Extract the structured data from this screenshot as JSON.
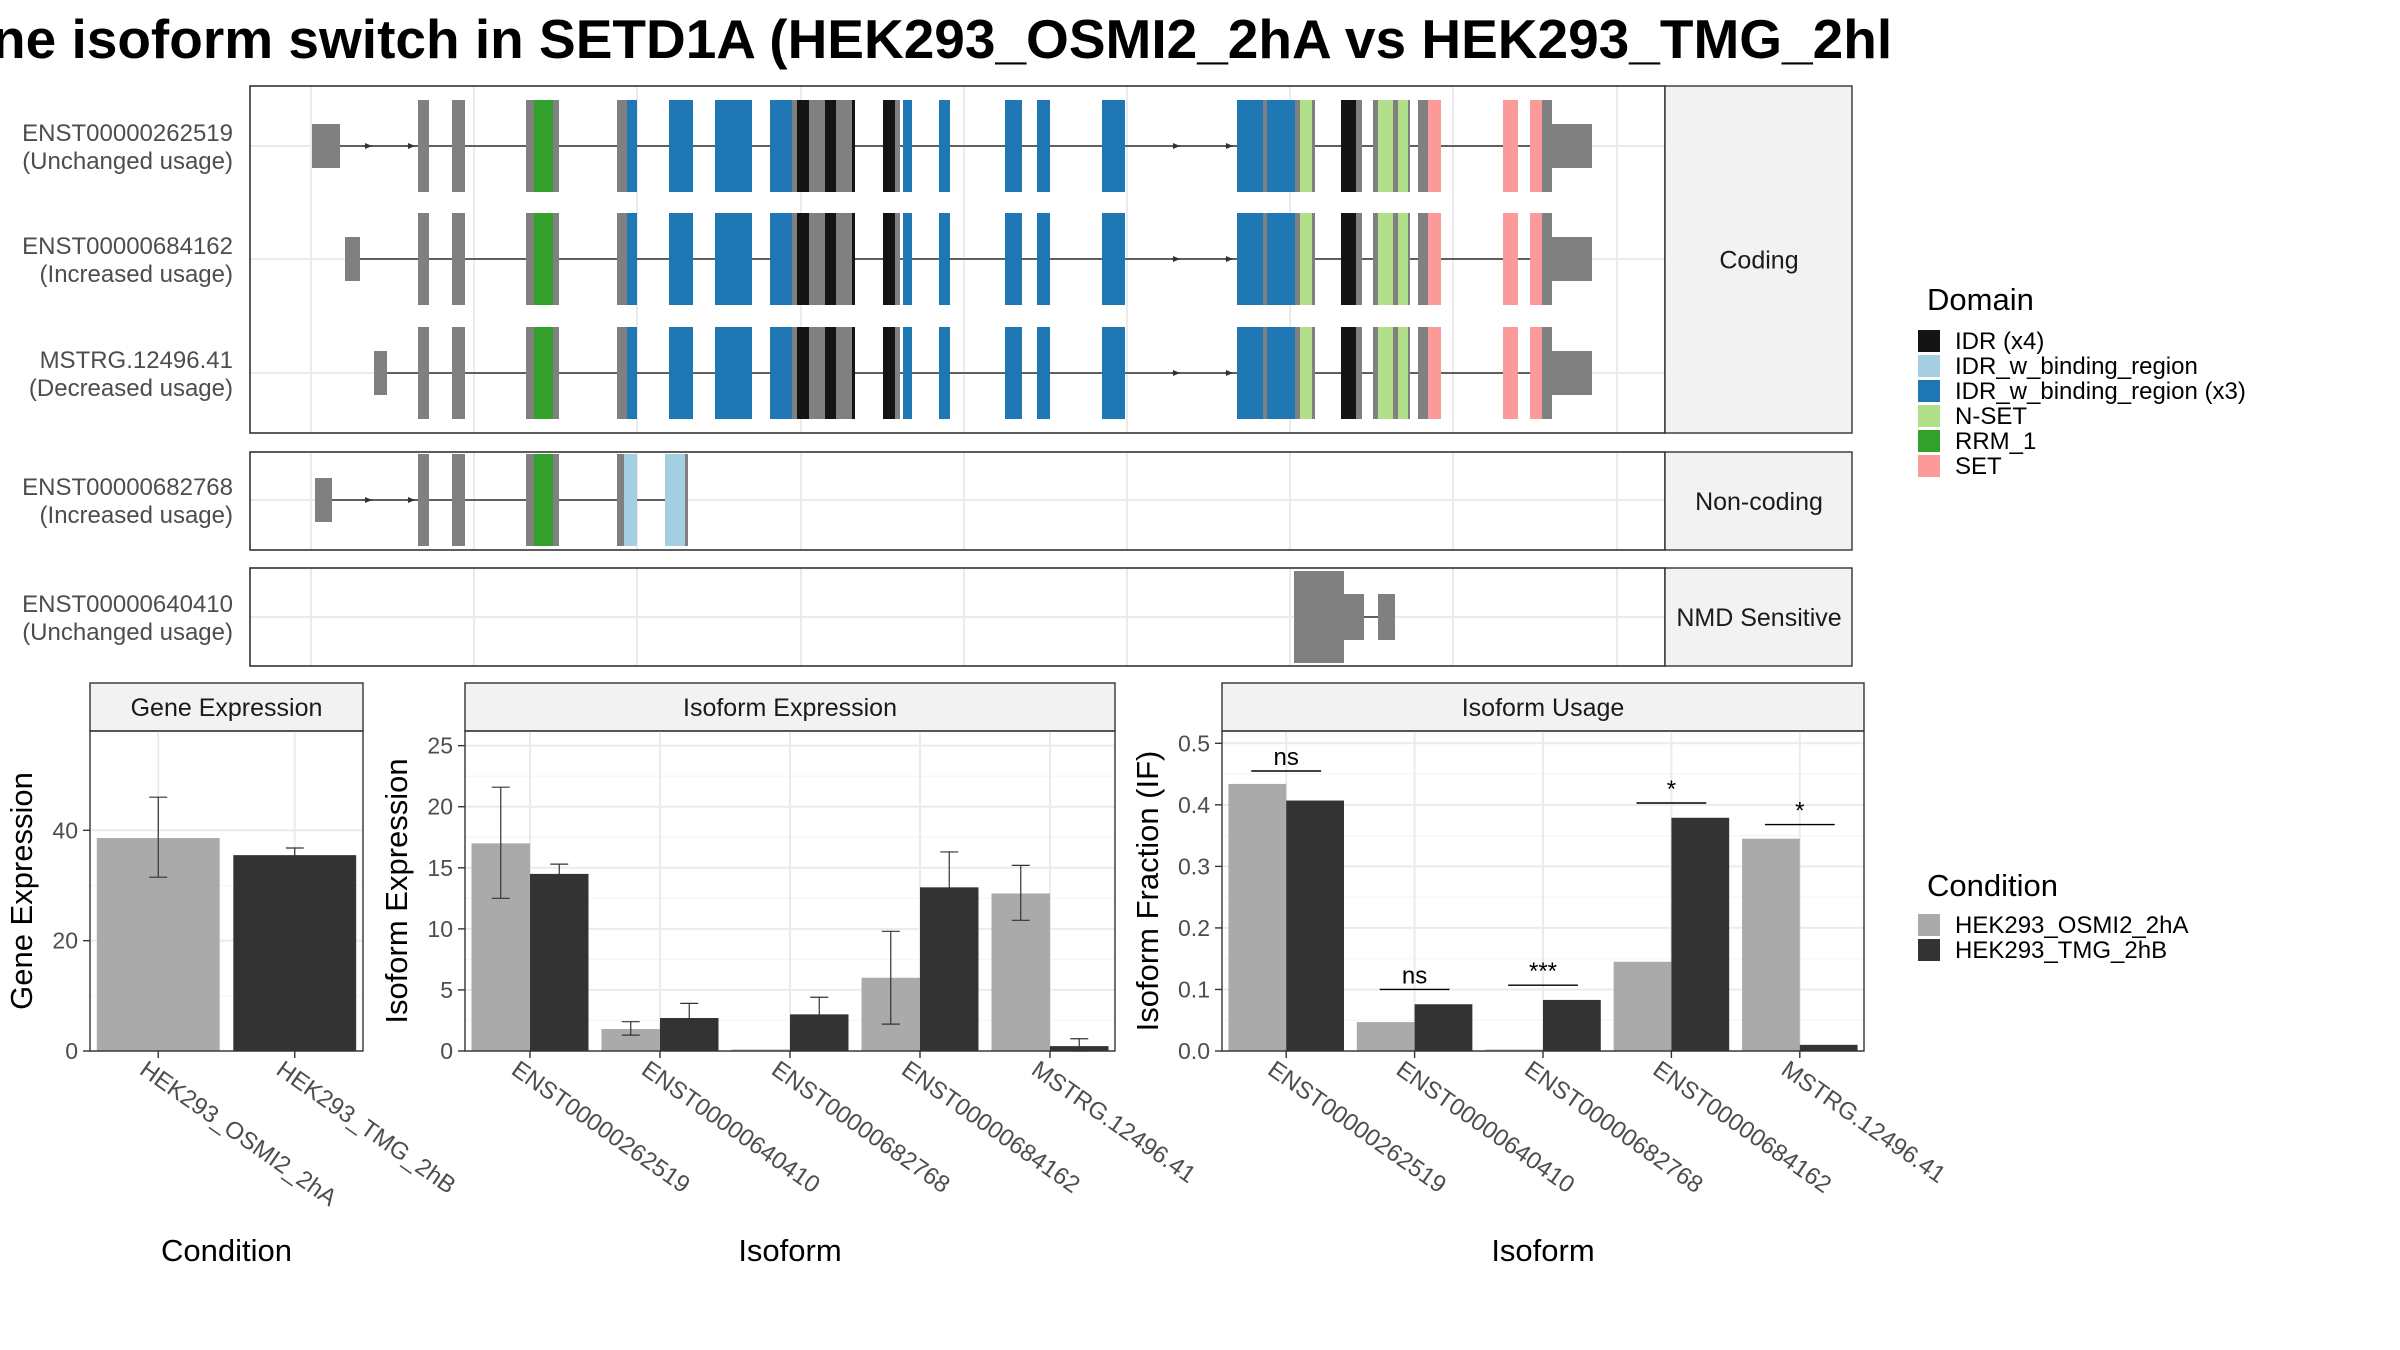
{
  "title": "ne isoform switch in SETD1A (HEK293_OSMI2_2hA vs HEK293_TMG_2hl",
  "colors": {
    "IDR": "#141414",
    "IDR_w_binding_region": "#a6cee3",
    "IDR_w_binding_region_x3": "#1f78b4",
    "N-SET": "#b2df8a",
    "RRM_1": "#33a02c",
    "SET": "#fb9a99",
    "noDomain": "#808080",
    "HEK293_OSMI2_2hA": "#aaaaaa",
    "HEK293_TMG_2hB": "#333333"
  },
  "structure": {
    "facets": [
      {
        "label": "Coding",
        "isoforms": [
          {
            "id": "ENST00000262519",
            "usage": "(Unchanged usage)"
          },
          {
            "id": "ENST00000684162",
            "usage": "(Increased usage)"
          },
          {
            "id": "MSTRG.12496.41",
            "usage": "(Decreased usage)"
          }
        ]
      },
      {
        "label": "Non-coding",
        "isoforms": [
          {
            "id": "ENST00000682768",
            "usage": "(Increased usage)"
          }
        ]
      },
      {
        "label": "NMD Sensitive",
        "isoforms": [
          {
            "id": "ENST00000640410",
            "usage": "(Unchanged usage)"
          }
        ]
      }
    ]
  },
  "domain_legend": {
    "title": "Domain",
    "items": [
      {
        "label": "IDR (x4)",
        "key": "IDR"
      },
      {
        "label": "IDR_w_binding_region",
        "key": "IDR_w_binding_region"
      },
      {
        "label": "IDR_w_binding_region (x3)",
        "key": "IDR_w_binding_region_x3"
      },
      {
        "label": "N-SET",
        "key": "N-SET"
      },
      {
        "label": "RRM_1",
        "key": "RRM_1"
      },
      {
        "label": "SET",
        "key": "SET"
      }
    ]
  },
  "condition_legend": {
    "title": "Condition",
    "items": [
      "HEK293_OSMI2_2hA",
      "HEK293_TMG_2hB"
    ]
  },
  "chart_data": [
    {
      "type": "bar",
      "title": "Gene Expression",
      "xlabel": "Condition",
      "ylabel": "Gene Expression",
      "categories": [
        "HEK293_OSMI2_2hA",
        "HEK293_TMG_2hB"
      ],
      "values": [
        38.6,
        35.5
      ],
      "error_low": [
        31.5,
        34.2
      ],
      "error_high": [
        46.0,
        36.8
      ],
      "ylim": [
        0,
        58
      ],
      "yticks": [
        0,
        20,
        40
      ]
    },
    {
      "type": "bar",
      "title": "Isoform Expression",
      "xlabel": "Isoform",
      "ylabel": "Isoform Expression",
      "categories": [
        "ENST00000262519",
        "ENST00000640410",
        "ENST00000682768",
        "ENST00000684162",
        "MSTRG.12496.41"
      ],
      "series": [
        {
          "name": "HEK293_OSMI2_2hA",
          "values": [
            17.0,
            1.8,
            0.0,
            6.0,
            12.9
          ],
          "error_low": [
            12.5,
            1.3,
            0.0,
            2.2,
            10.7
          ],
          "error_high": [
            21.6,
            2.4,
            0.0,
            9.8,
            15.2
          ]
        },
        {
          "name": "HEK293_TMG_2hB",
          "values": [
            14.5,
            2.7,
            3.0,
            13.4,
            0.4
          ],
          "error_low": [
            13.7,
            1.6,
            1.6,
            10.5,
            0.0
          ],
          "error_high": [
            15.3,
            3.9,
            4.4,
            16.3,
            1.0
          ]
        }
      ],
      "ylim": [
        0,
        26.2
      ],
      "yticks": [
        0,
        5,
        10,
        15,
        20,
        25
      ]
    },
    {
      "type": "bar",
      "title": "Isoform Usage",
      "xlabel": "Isoform",
      "ylabel": "Isoform Fraction (IF)",
      "categories": [
        "ENST00000262519",
        "ENST00000640410",
        "ENST00000682768",
        "ENST00000684162",
        "MSTRG.12496.41"
      ],
      "series": [
        {
          "name": "HEK293_OSMI2_2hA",
          "values": [
            0.434,
            0.047,
            0.0,
            0.145,
            0.345
          ]
        },
        {
          "name": "HEK293_TMG_2hB",
          "values": [
            0.407,
            0.076,
            0.083,
            0.379,
            0.01
          ]
        }
      ],
      "significance": [
        "ns",
        "ns",
        "***",
        "*",
        "*"
      ],
      "sig_line_y": [
        0.455,
        0.1,
        0.107,
        0.403,
        0.368
      ],
      "ylim": [
        0,
        0.52
      ],
      "yticks": [
        0.0,
        0.1,
        0.2,
        0.3,
        0.4,
        0.5
      ],
      "ytick_labels": [
        "0.0",
        "0.1",
        "0.2",
        "0.3",
        "0.4",
        "0.5"
      ]
    }
  ]
}
